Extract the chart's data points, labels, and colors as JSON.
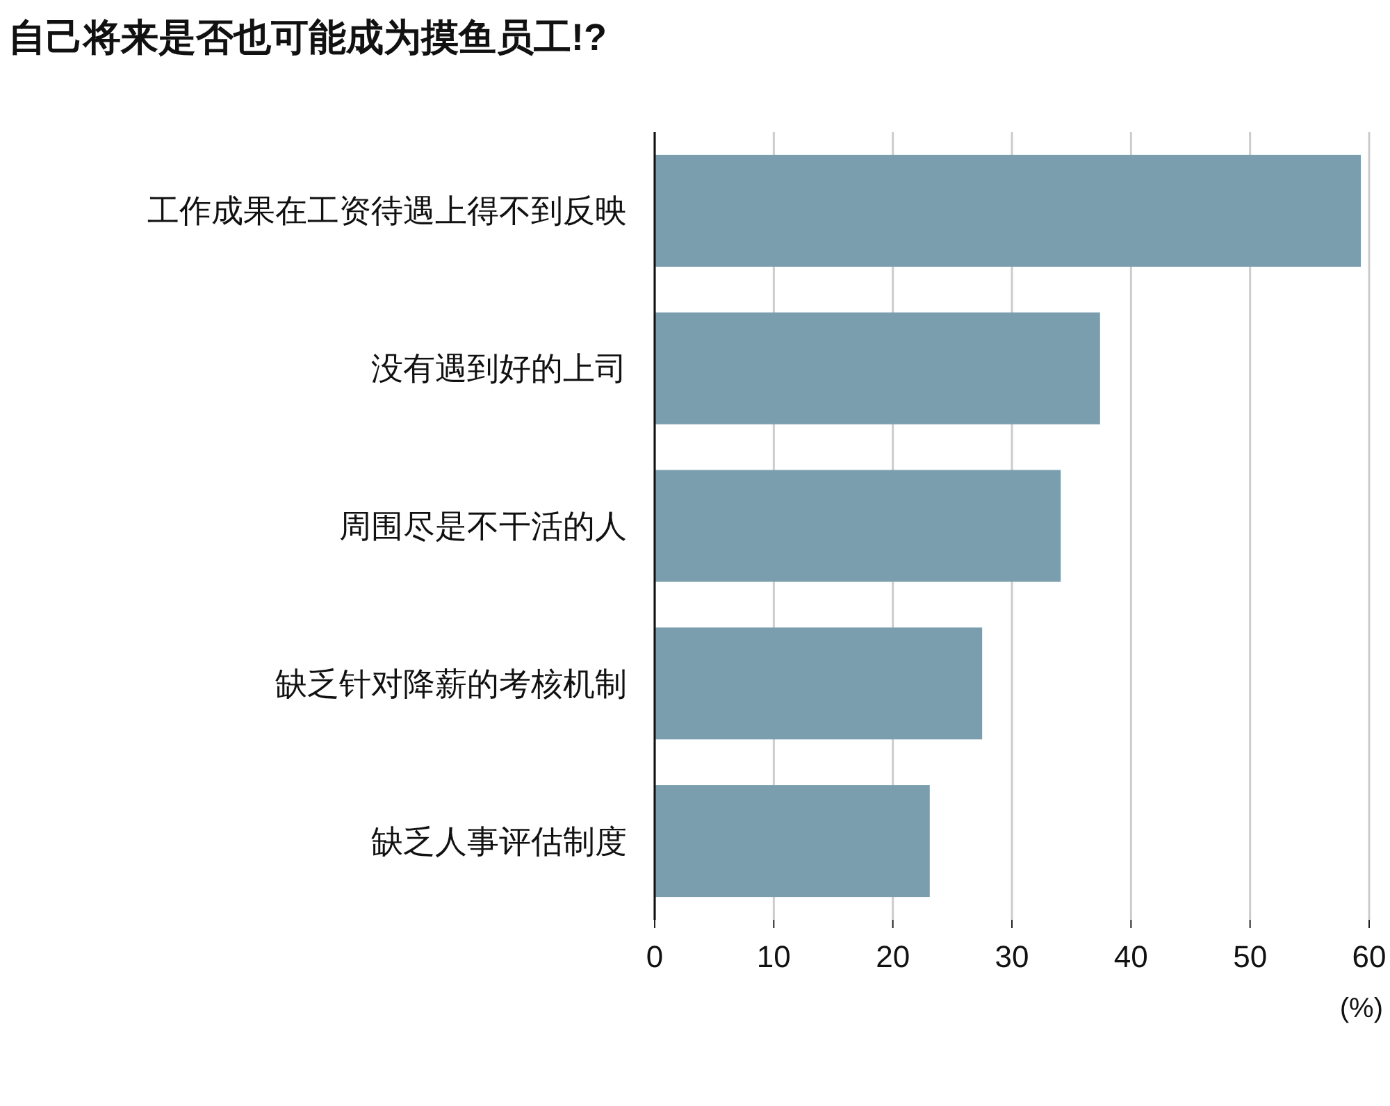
{
  "chart_data": {
    "type": "bar",
    "orientation": "horizontal",
    "title": "自己将来是否也可能成为摸鱼员工!?",
    "xlabel": "(%)",
    "categories": [
      "工作成果在工资待遇上得不到反映",
      "没有遇到好的上司",
      "周围尽是不干活的人",
      "缺乏针对降薪的考核机制",
      "缺乏人事评估制度"
    ],
    "values": [
      59.3,
      37.4,
      34.1,
      27.5,
      23.1
    ],
    "color": "#7a9eae",
    "xlim": [
      0,
      60
    ],
    "xticks": [
      0,
      10,
      20,
      30,
      40,
      50,
      60
    ],
    "grid": "x"
  }
}
